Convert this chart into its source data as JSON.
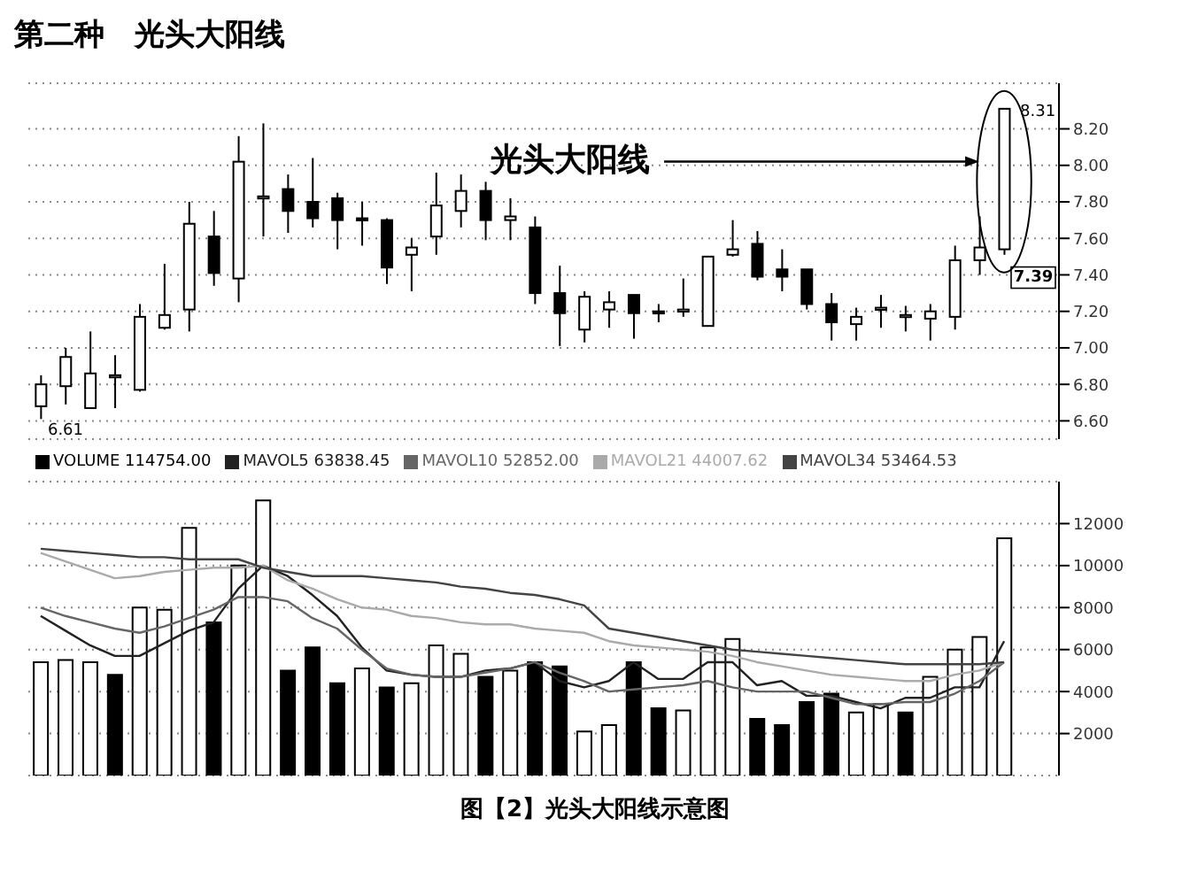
{
  "chart_data": [
    {
      "type": "candlestick",
      "title": "第二种　光头大阳线",
      "categories": [
        null,
        null,
        null,
        null,
        null,
        null,
        null,
        null,
        null,
        null,
        null,
        null,
        null,
        null,
        null,
        null,
        null,
        null,
        null,
        null,
        null,
        null,
        null,
        null,
        null,
        null,
        null,
        null,
        null,
        null,
        null,
        null,
        null,
        null,
        null,
        null,
        null,
        null,
        null,
        null
      ],
      "series": [
        {
          "color": "#000000",
          "ohlc": [
            [
              6.68,
              6.85,
              6.61,
              6.8
            ],
            [
              6.79,
              7.0,
              6.69,
              6.95
            ],
            [
              6.67,
              7.09,
              6.67,
              6.86
            ],
            [
              6.84,
              6.96,
              6.67,
              6.85
            ],
            [
              6.77,
              7.24,
              6.76,
              7.17
            ],
            [
              7.11,
              7.46,
              7.1,
              7.18
            ],
            [
              7.21,
              7.8,
              7.09,
              7.68
            ],
            [
              7.61,
              7.75,
              7.34,
              7.41
            ],
            [
              7.38,
              8.16,
              7.25,
              8.02
            ],
            [
              7.82,
              8.23,
              7.61,
              7.83
            ],
            [
              7.87,
              7.95,
              7.63,
              7.75
            ],
            [
              7.8,
              8.04,
              7.66,
              7.71
            ],
            [
              7.82,
              7.85,
              7.54,
              7.7
            ],
            [
              7.71,
              7.8,
              7.56,
              7.7
            ],
            [
              7.7,
              7.71,
              7.35,
              7.44
            ],
            [
              7.51,
              7.6,
              7.31,
              7.55
            ],
            [
              7.61,
              7.96,
              7.51,
              7.78
            ],
            [
              7.75,
              7.95,
              7.66,
              7.86
            ],
            [
              7.86,
              7.91,
              7.59,
              7.7
            ],
            [
              7.7,
              7.82,
              7.59,
              7.72
            ],
            [
              7.66,
              7.72,
              7.24,
              7.3
            ],
            [
              7.3,
              7.45,
              7.01,
              7.19
            ],
            [
              7.1,
              7.31,
              7.03,
              7.28
            ],
            [
              7.21,
              7.31,
              7.11,
              7.25
            ],
            [
              7.29,
              7.29,
              7.05,
              7.19
            ],
            [
              7.2,
              7.24,
              7.14,
              7.19
            ],
            [
              7.2,
              7.38,
              7.17,
              7.21
            ],
            [
              7.12,
              7.5,
              7.12,
              7.5
            ],
            [
              7.51,
              7.7,
              7.5,
              7.54
            ],
            [
              7.57,
              7.64,
              7.37,
              7.39
            ],
            [
              7.43,
              7.54,
              7.31,
              7.39
            ],
            [
              7.43,
              7.43,
              7.21,
              7.24
            ],
            [
              7.24,
              7.3,
              7.04,
              7.14
            ],
            [
              7.13,
              7.22,
              7.04,
              7.17
            ],
            [
              7.21,
              7.29,
              7.11,
              7.22
            ],
            [
              7.17,
              7.23,
              7.09,
              7.18
            ],
            [
              7.16,
              7.24,
              7.04,
              7.2
            ],
            [
              7.17,
              7.56,
              7.1,
              7.48
            ],
            [
              7.48,
              7.72,
              7.4,
              7.55
            ],
            [
              7.54,
              8.31,
              7.51,
              8.31
            ]
          ]
        }
      ],
      "ylim": [
        6.5,
        8.45
      ],
      "yticks": [
        {
          "value": 6.6,
          "label": "6.60"
        },
        {
          "value": 6.8,
          "label": "6.80"
        },
        {
          "value": 7.0,
          "label": "7.00"
        },
        {
          "value": 7.2,
          "label": "7.20"
        },
        {
          "value": 7.4,
          "label": "7.40"
        },
        {
          "value": 7.6,
          "label": "7.60"
        },
        {
          "value": 7.8,
          "label": "7.80"
        },
        {
          "value": 8.0,
          "label": "8.00"
        },
        {
          "value": 8.2,
          "label": "8.20"
        }
      ],
      "grid": "y",
      "annotations": [
        "6.61",
        "8.31",
        "7.39",
        "光头大阳线"
      ]
    },
    {
      "type": "bar",
      "categories": [
        null,
        null,
        null,
        null,
        null,
        null,
        null,
        null,
        null,
        null,
        null,
        null,
        null,
        null,
        null,
        null,
        null,
        null,
        null,
        null,
        null,
        null,
        null,
        null,
        null,
        null,
        null,
        null,
        null,
        null,
        null,
        null,
        null,
        null,
        null,
        null,
        null,
        null,
        null,
        null
      ],
      "series": [
        {
          "name": "VOLUME 114754.00",
          "color": "#000000",
          "colors": [
            "#ffffff",
            "#ffffff",
            "#ffffff",
            "#000000",
            "#ffffff",
            "#ffffff",
            "#ffffff",
            "#000000",
            "#ffffff",
            "#ffffff",
            "#000000",
            "#000000",
            "#000000",
            "#ffffff",
            "#000000",
            "#ffffff",
            "#ffffff",
            "#ffffff",
            "#000000",
            "#ffffff",
            "#000000",
            "#000000",
            "#ffffff",
            "#ffffff",
            "#000000",
            "#000000",
            "#ffffff",
            "#ffffff",
            "#ffffff",
            "#000000",
            "#000000",
            "#000000",
            "#000000",
            "#ffffff",
            "#ffffff",
            "#000000",
            "#ffffff",
            "#ffffff",
            "#ffffff",
            "#ffffff"
          ],
          "values": [
            5400,
            5500,
            5400,
            4800,
            8000,
            7900,
            11800,
            7300,
            10000,
            13100,
            5000,
            6100,
            4400,
            5100,
            4200,
            4400,
            6200,
            5800,
            4700,
            5000,
            5400,
            5200,
            2100,
            2400,
            5400,
            3200,
            3100,
            6100,
            6500,
            2700,
            2400,
            3500,
            3900,
            3000,
            3400,
            3000,
            4700,
            6000,
            6600,
            11300
          ]
        },
        {
          "name": "MAVOL5 63838.45",
          "type": "line",
          "color": "#222222",
          "values": [
            7600,
            6900,
            6200,
            5700,
            5700,
            6300,
            6900,
            7300,
            8900,
            10000,
            9500,
            8600,
            7600,
            6100,
            5000,
            4800,
            4700,
            4700,
            5000,
            5100,
            5400,
            4500,
            4200,
            4500,
            5400,
            4600,
            4600,
            5400,
            5400,
            4300,
            4500,
            3800,
            3800,
            3500,
            3200,
            3700,
            3700,
            4200,
            4200,
            6400
          ]
        },
        {
          "name": "MAVOL10 52852.00",
          "type": "line",
          "color": "#666666",
          "values": [
            8000,
            7600,
            7300,
            7000,
            6800,
            7100,
            7500,
            7900,
            8500,
            8500,
            8300,
            7500,
            7000,
            6000,
            5100,
            4800,
            4700,
            4700,
            4900,
            5100,
            5400,
            4900,
            4500,
            4000,
            4100,
            4200,
            4300,
            4500,
            4200,
            4000,
            4000,
            4000,
            3700,
            3400,
            3400,
            3500,
            3500,
            3900,
            4500,
            5400
          ]
        },
        {
          "name": "MAVOL21 44007.62",
          "type": "line",
          "color": "#aaaaaa",
          "values": [
            10600,
            10200,
            9800,
            9400,
            9500,
            9700,
            9800,
            9900,
            9900,
            10000,
            9300,
            8900,
            8400,
            8000,
            7900,
            7600,
            7500,
            7300,
            7200,
            7200,
            7000,
            6900,
            6800,
            6400,
            6200,
            6100,
            6000,
            5900,
            5700,
            5400,
            5200,
            5000,
            4800,
            4700,
            4600,
            4500,
            4500,
            4800,
            5000,
            5400
          ]
        },
        {
          "name": "MAVOL34 53464.53",
          "type": "line",
          "color": "#444444",
          "values": [
            10800,
            10700,
            10600,
            10500,
            10400,
            10400,
            10300,
            10300,
            10300,
            9900,
            9700,
            9500,
            9500,
            9500,
            9400,
            9300,
            9200,
            9000,
            8900,
            8700,
            8600,
            8400,
            8100,
            7000,
            6800,
            6600,
            6400,
            6200,
            6000,
            5900,
            5800,
            5700,
            5600,
            5500,
            5400,
            5300,
            5300,
            5300,
            5300,
            5400
          ]
        }
      ],
      "ylim": [
        0,
        14000
      ],
      "yticks": [
        2000,
        4000,
        6000,
        8000,
        10000,
        12000
      ],
      "grid": "y",
      "legend": "top left",
      "annotations": [
        "图【2】光头大阳线示意图"
      ]
    }
  ]
}
